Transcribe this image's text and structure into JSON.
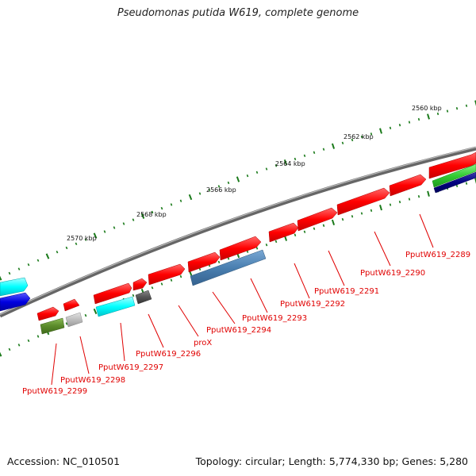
{
  "title": "Pseudomonas putida W619, complete genome",
  "footer": {
    "accession": "Accession: NC_010501",
    "summary": "Topology: circular; Length: 5,774,330 bp; Genes: 5,280"
  },
  "scale_labels": [
    "2560 kbp",
    "2562 kbp",
    "2564 kbp",
    "2566 kbp",
    "2568 kbp",
    "2570 kbp"
  ],
  "gene_labels": [
    "PputW619_2289",
    "PputW619_2290",
    "PputW619_2291",
    "PputW619_2292",
    "PputW619_2293",
    "PputW619_2294",
    "proX",
    "PputW619_2296",
    "PputW619_2297",
    "PputW619_2298",
    "PputW619_2299"
  ],
  "colors": {
    "cds": "#ff0000",
    "backbone": "#777777",
    "tick": "#1a7a1a",
    "label": "#e00000",
    "cyan": "#00ffff",
    "blue": "#0000dd",
    "steelblue": "#4a7fb0",
    "olive": "#5a8a2a",
    "grey": "#aaaaaa",
    "darkgrey": "#555555",
    "green": "#33cc33",
    "navy": "#000080"
  }
}
